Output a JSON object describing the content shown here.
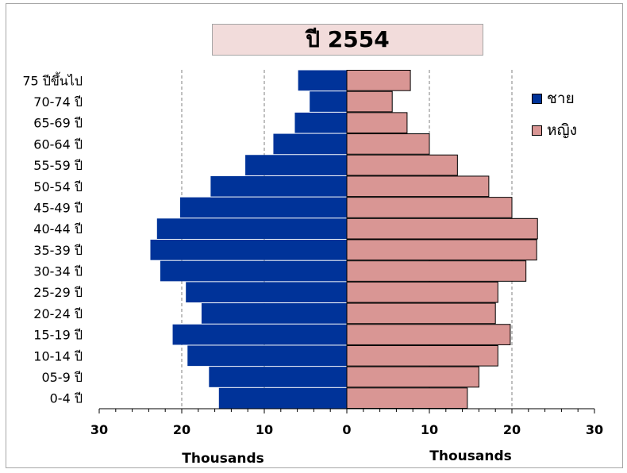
{
  "chart_data": {
    "type": "bar",
    "orientation": "horizontal",
    "title": "ปี 2554",
    "categories": [
      "0-4 ปี",
      "05-9 ปี",
      "10-14 ปี",
      "15-19 ปี",
      "20-24 ปี",
      "25-29 ปี",
      "30-34 ปี",
      "35-39 ปี",
      "40-44 ปี",
      "45-49 ปี",
      "50-54 ปี",
      "55-59 ปี",
      "60-64 ปี",
      "65-69 ปี",
      "70-74 ปี",
      "75 ปีขึ้นไป"
    ],
    "series": [
      {
        "name": "ชาย",
        "color": "#003399",
        "values": [
          15.5,
          16.7,
          19.3,
          21.1,
          17.6,
          19.5,
          22.6,
          23.8,
          23.0,
          20.2,
          16.5,
          12.3,
          8.9,
          6.3,
          4.5,
          5.9
        ]
      },
      {
        "name": "หญิง",
        "color": "#d99694",
        "values": [
          14.6,
          16.0,
          18.3,
          19.8,
          18.0,
          18.3,
          21.7,
          23.0,
          23.1,
          20.0,
          17.2,
          13.4,
          10.0,
          7.3,
          5.5,
          7.7
        ]
      }
    ],
    "xlim": [
      -30,
      30
    ],
    "x_ticks": [
      -30,
      -20,
      -10,
      0,
      10,
      20,
      30
    ],
    "x_tick_labels": [
      "30",
      "20",
      "10",
      "0",
      "10",
      "20",
      "30"
    ],
    "xlabel_left": "Thousands",
    "xlabel_right": "Thousands",
    "grid": "vertical-dashed",
    "legend_position": "right"
  }
}
